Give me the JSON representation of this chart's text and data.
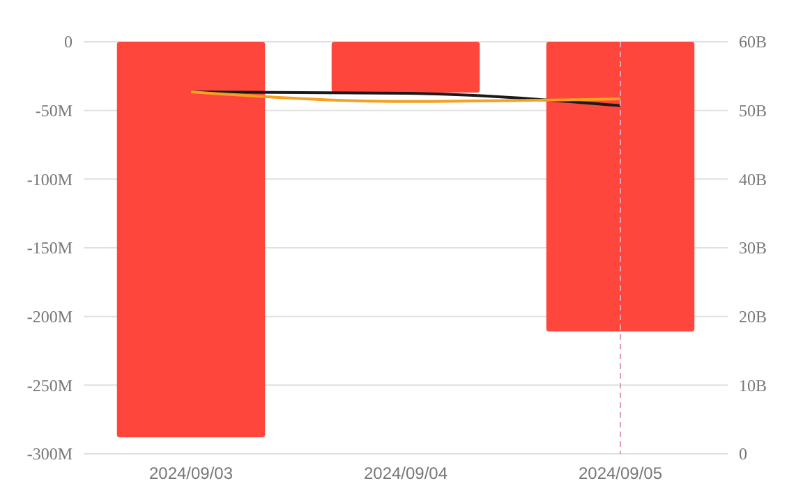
{
  "chart_data": {
    "type": "bar",
    "categories": [
      "2024/09/03",
      "2024/09/04",
      "2024/09/05"
    ],
    "series": [
      {
        "color": "#ff463c",
        "values": [
          -288,
          -37,
          -211
        ]
      },
      {
        "type": "line",
        "axis": "y2",
        "color": "#1a1a1a",
        "values": [
          52.7,
          52.5,
          50.7
        ]
      },
      {
        "type": "line",
        "axis": "y2",
        "color": "#f5a020",
        "values": [
          52.7,
          51.3,
          51.7
        ]
      }
    ],
    "ylim": [
      -300,
      0
    ],
    "yticks": [
      {
        "value": 0,
        "label": "0"
      },
      {
        "value": -50,
        "label": "-50M"
      },
      {
        "value": -100,
        "label": "-100M"
      },
      {
        "value": -150,
        "label": "-150M"
      },
      {
        "value": -200,
        "label": "-200M"
      },
      {
        "value": -250,
        "label": "-250M"
      },
      {
        "value": -300,
        "label": "-300M"
      }
    ],
    "y2lim": [
      0,
      60
    ],
    "y2ticks": [
      {
        "value": 0,
        "label": "0"
      },
      {
        "value": 10,
        "label": "10B"
      },
      {
        "value": 20,
        "label": "20B"
      },
      {
        "value": 30,
        "label": "30B"
      },
      {
        "value": 40,
        "label": "40B"
      },
      {
        "value": 50,
        "label": "50B"
      },
      {
        "value": 60,
        "label": "60B"
      }
    ],
    "ref_lines": [
      {
        "axis": "x",
        "value": "2024/09/05",
        "color": "#e0a0b0",
        "line_style": "dashed"
      }
    ],
    "grid": "y",
    "marker": "none",
    "line_style": "solid"
  }
}
